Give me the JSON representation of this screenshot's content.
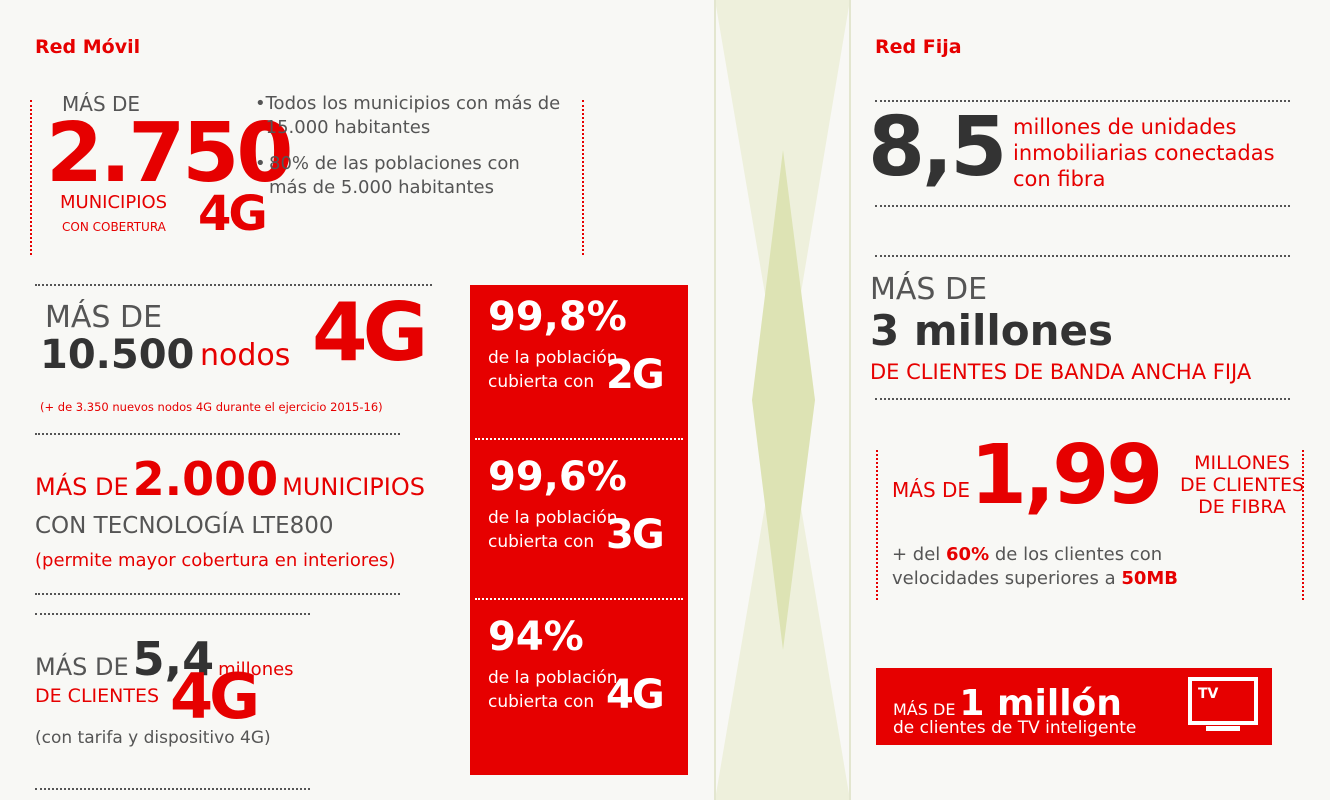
{
  "left": {
    "title": "Red Móvil",
    "municipios": {
      "pre": "MÁS DE",
      "number": "2.750",
      "label": "MUNICIPIOS",
      "sub": "CON COBERTURA",
      "tech": "4G"
    },
    "bullets": [
      "Todos los municipios con más de 15.000 habitantes",
      "80% de las poblaciones con más de 5.000 habitantes"
    ],
    "nodos": {
      "pre": "MÁS DE",
      "number": "10.500",
      "unit": "nodos",
      "tech": "4G",
      "note": "(+ de 3.350 nuevos nodos 4G durante el ejercicio 2015-16)"
    },
    "lte": {
      "pre": "MÁS DE",
      "number": "2.000",
      "unit": "MUNICIPIOS",
      "line2": "CON TECNOLOGÍA LTE800",
      "note": "(permite mayor cobertura en interiores)"
    },
    "clientes": {
      "pre": "MÁS DE",
      "number": "5,4",
      "unit": "millones",
      "line2": "DE CLIENTES",
      "tech": "4G",
      "note": "(con tarifa y dispositivo 4G)"
    },
    "coverage": [
      {
        "value": "99,8%",
        "line1": "de la población",
        "line2": "cubierta con",
        "tech": "2G"
      },
      {
        "value": "99,6%",
        "line1": "de la población",
        "line2": "cubierta con",
        "tech": "3G"
      },
      {
        "value": "94%",
        "line1": "de la población",
        "line2": "cubierta con",
        "tech": "4G"
      }
    ]
  },
  "right": {
    "title": "Red Fija",
    "unidades": {
      "number": "8,5",
      "text": [
        "millones de unidades",
        "inmobiliarias conectadas",
        "con fibra"
      ]
    },
    "banda": {
      "pre": "MÁS DE",
      "number": "3 millones",
      "label": "DE CLIENTES DE BANDA ANCHA FIJA"
    },
    "fibra": {
      "pre": "MÁS DE",
      "number": "1,99",
      "label": [
        "MILLONES",
        "DE CLIENTES",
        "DE FIBRA"
      ],
      "note": [
        "+ del ",
        "60%",
        " de los clientes con velocidades superiores a ",
        "50MB"
      ]
    },
    "tv": {
      "pre": "MÁS DE",
      "number": "1 millón",
      "label": "de clientes de TV inteligente",
      "icon": "TV"
    }
  }
}
